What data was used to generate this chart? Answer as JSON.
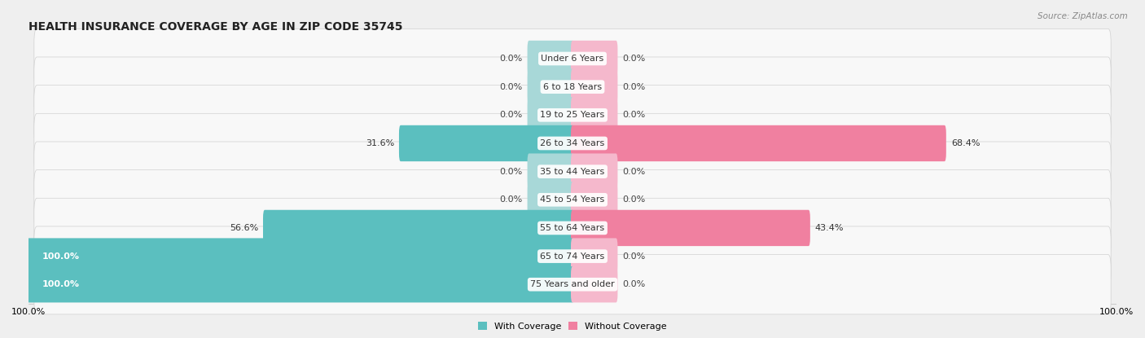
{
  "title": "HEALTH INSURANCE COVERAGE BY AGE IN ZIP CODE 35745",
  "source": "Source: ZipAtlas.com",
  "categories": [
    "Under 6 Years",
    "6 to 18 Years",
    "19 to 25 Years",
    "26 to 34 Years",
    "35 to 44 Years",
    "45 to 54 Years",
    "55 to 64 Years",
    "65 to 74 Years",
    "75 Years and older"
  ],
  "with_coverage": [
    0.0,
    0.0,
    0.0,
    31.6,
    0.0,
    0.0,
    56.6,
    100.0,
    100.0
  ],
  "without_coverage": [
    0.0,
    0.0,
    0.0,
    68.4,
    0.0,
    0.0,
    43.4,
    0.0,
    0.0
  ],
  "stub_with": [
    8.0,
    8.0,
    8.0,
    0.0,
    8.0,
    8.0,
    0.0,
    0.0,
    0.0
  ],
  "stub_without": [
    8.0,
    8.0,
    8.0,
    0.0,
    8.0,
    8.0,
    0.0,
    8.0,
    8.0
  ],
  "color_with": "#5bbfbf",
  "color_without": "#f080a0",
  "color_with_stub": "#a8d8d8",
  "color_without_stub": "#f5b8cc",
  "bg_color": "#efefef",
  "row_bg_color": "#f8f8f8",
  "title_fontsize": 10,
  "label_fontsize": 8,
  "cat_fontsize": 8
}
